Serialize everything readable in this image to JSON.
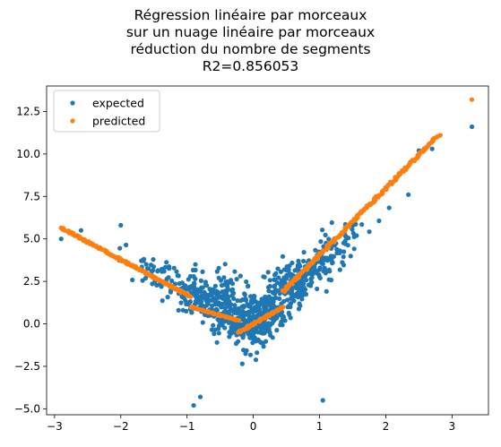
{
  "chart_data": {
    "type": "scatter",
    "title_lines": [
      "Régression linéaire par morceaux",
      "sur un nuage linéaire par morceaux",
      "réduction du nombre de segments",
      "R2=0.856053"
    ],
    "xlim": [
      -3.12,
      3.55
    ],
    "ylim": [
      -5.35,
      14.0
    ],
    "xticks": [
      -3,
      -2,
      -1,
      0,
      1,
      2,
      3
    ],
    "yticks": [
      -5.0,
      -2.5,
      0.0,
      2.5,
      5.0,
      7.5,
      10.0,
      12.5
    ],
    "xtick_labels": [
      "−3",
      "−2",
      "−1",
      "0",
      "1",
      "2",
      "3"
    ],
    "ytick_labels": [
      "−5.0",
      "−2.5",
      "0.0",
      "2.5",
      "5.0",
      "7.5",
      "10.0",
      "12.5"
    ],
    "legend_position": "upper-left",
    "series": [
      {
        "name": "expected",
        "color": "#1f77b4",
        "model": "noisy_v",
        "n": 900,
        "note_points": [
          [
            -2.9,
            5.0
          ],
          [
            -2.6,
            5.5
          ],
          [
            -2.0,
            5.8
          ],
          [
            -0.9,
            -4.8
          ],
          [
            -0.8,
            -4.3
          ],
          [
            1.05,
            -4.5
          ],
          [
            3.3,
            11.6
          ],
          [
            2.5,
            10.2
          ],
          [
            2.7,
            10.3
          ]
        ]
      },
      {
        "name": "predicted",
        "color": "#ff7f0e",
        "segments": [
          {
            "x0": -2.9,
            "x1": -0.95,
            "y0": 5.65,
            "y1": 1.6
          },
          {
            "x0": -0.95,
            "x1": -0.22,
            "y0": 1.0,
            "y1": 0.2
          },
          {
            "x0": -0.22,
            "x1": 0.45,
            "y0": -0.5,
            "y1": 1.0
          },
          {
            "x0": 0.45,
            "x1": 2.8,
            "y0": 1.9,
            "y1": 11.1
          }
        ],
        "extra_points": [
          [
            3.3,
            13.2
          ]
        ]
      }
    ]
  }
}
